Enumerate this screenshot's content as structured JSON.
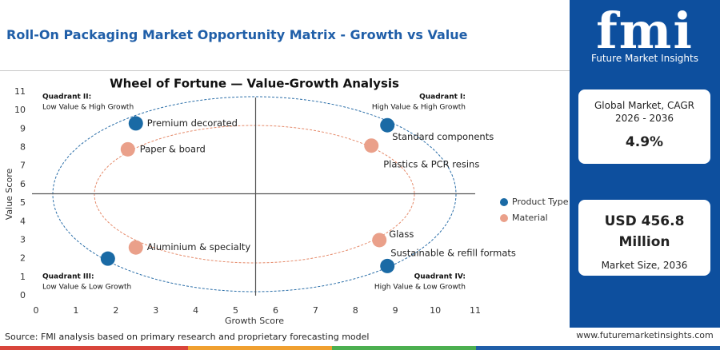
{
  "header": {
    "title": "Roll-On Packaging Market Opportunity Matrix - Growth vs Value"
  },
  "chart_data": {
    "type": "scatter",
    "title": "Wheel of Fortune — Value-Growth Analysis",
    "x_label": "Growth Score",
    "y_label": "Value Score",
    "xlim": [
      0,
      11
    ],
    "ylim": [
      0,
      11
    ],
    "xticks": [
      0,
      1,
      2,
      3,
      4,
      5,
      6,
      7,
      8,
      9,
      10,
      11
    ],
    "yticks": [
      0,
      1,
      2,
      3,
      4,
      5,
      6,
      7,
      8,
      9,
      10,
      11
    ],
    "quadrant_lines": {
      "x": 5.5,
      "y": 5.5
    },
    "quadrants": [
      {
        "title": "Quadrant II:",
        "desc": "Low Value & High Growth"
      },
      {
        "title": "Quadrant I:",
        "desc": "High Value & High Growth"
      },
      {
        "title": "Quadrant III:",
        "desc": "Low Value & Low Growth"
      },
      {
        "title": "Quadrant IV:",
        "desc": "High Value & Low Growth"
      }
    ],
    "series": [
      {
        "name": "Product Type",
        "color": "#1a6aa5",
        "x": [
          2.5,
          8.8,
          8.8,
          1.8
        ],
        "values": [
          9.3,
          9.2,
          1.6,
          2.0
        ],
        "labels": [
          "Premium decorated",
          "Standard components",
          "Sustainable & refill formats",
          null
        ]
      },
      {
        "name": "Material",
        "color": "#eaa08a",
        "x": [
          2.3,
          8.4,
          2.5,
          8.6
        ],
        "values": [
          7.9,
          8.1,
          2.6,
          3.0
        ],
        "labels": [
          "Paper & board",
          "Plastics & PCR resins",
          "Aluminium & specialty",
          "Glass"
        ]
      }
    ]
  },
  "panel": {
    "logo": "fmi",
    "logo_caption": "Future Market Insights",
    "cards": [
      {
        "label": "Global Market, CAGR 2026 - 2036",
        "value": "4.9%"
      },
      {
        "value": "USD 456.8 Million",
        "label": "Market Size, 2036"
      }
    ]
  },
  "footer": {
    "source": "Source: FMI analysis based on primary research and proprietary forecasting model",
    "website": "www.futuremarketinsights.com"
  }
}
